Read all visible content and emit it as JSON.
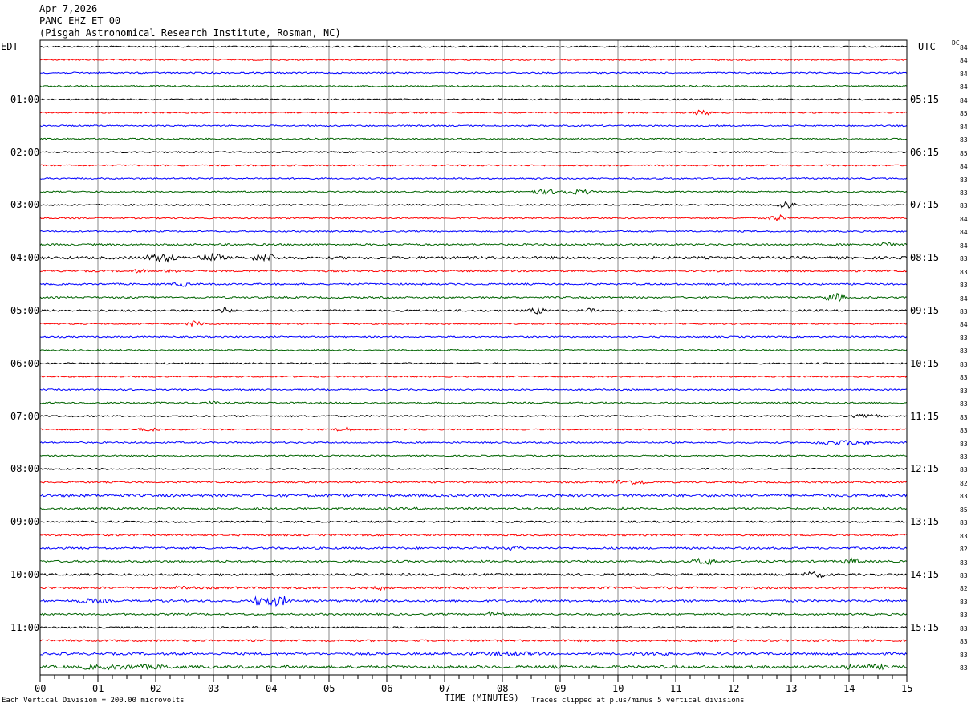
{
  "header": {
    "date": "Apr 7,2026",
    "channel": "PANC EHZ ET 00",
    "station": "(Pisgah Astronomical Research Institute, Rosman, NC)"
  },
  "left_zone": "EDT",
  "right_zone": "UTC",
  "dc_label": "DC",
  "footer": {
    "scale": "Each Vertical Division =  200.00 microvolts",
    "clip": "Traces clipped at plus/minus 5 vertical divisions"
  },
  "colors": [
    "#000000",
    "#ff0000",
    "#0000ff",
    "#006400"
  ],
  "chart_data": {
    "type": "line",
    "title": "PANC EHZ ET 00",
    "xlabel": "TIME (MINUTES)",
    "x_ticks": [
      "00",
      "01",
      "02",
      "03",
      "04",
      "05",
      "06",
      "07",
      "08",
      "09",
      "10",
      "11",
      "12",
      "13",
      "14",
      "15"
    ],
    "xlim": [
      0,
      15
    ],
    "left_hour_labels": [
      "01:00",
      "02:00",
      "03:00",
      "04:00",
      "05:00",
      "06:00",
      "07:00",
      "08:00",
      "09:00",
      "10:00",
      "11:00"
    ],
    "right_hour_labels": [
      "05:15",
      "06:15",
      "07:15",
      "08:15",
      "09:15",
      "10:15",
      "11:15",
      "12:15",
      "13:15",
      "14:15",
      "15:15"
    ],
    "dc_offsets": [
      "84",
      "84",
      "84",
      "84",
      "84",
      "85",
      "84",
      "83",
      "85",
      "84",
      "83",
      "83",
      "83",
      "84",
      "84",
      "84",
      "83",
      "83",
      "83",
      "84",
      "83",
      "84",
      "83",
      "83",
      "83",
      "83",
      "83",
      "83",
      "83",
      "83",
      "83",
      "83",
      "83",
      "82",
      "83",
      "85",
      "83",
      "83",
      "82",
      "83",
      "83",
      "82",
      "83",
      "83",
      "83",
      "83",
      "83",
      "83"
    ],
    "row_amplitude": [
      1,
      1,
      1,
      1,
      1,
      1,
      1,
      1,
      1,
      1,
      1,
      1,
      1,
      1,
      1,
      1.3,
      1.8,
      1.3,
      1.2,
      1.2,
      1.3,
      1,
      1,
      1,
      1,
      1,
      1,
      1.1,
      1.1,
      1,
      1.1,
      1,
      1,
      1.2,
      1.8,
      1.5,
      1.2,
      1.3,
      1.4,
      1.4,
      1.5,
      1.5,
      1.5,
      1.3,
      1.2,
      1.4,
      1.6,
      1.9
    ],
    "events": [
      {
        "row": 5,
        "minute": 11.45,
        "amplitude": 3,
        "duration": 0.2
      },
      {
        "row": 11,
        "minute": 9.0,
        "amplitude": 3,
        "duration": 1.0
      },
      {
        "row": 12,
        "minute": 12.9,
        "amplitude": 5,
        "duration": 0.2
      },
      {
        "row": 13,
        "minute": 12.75,
        "amplitude": 4,
        "duration": 0.15
      },
      {
        "row": 15,
        "minute": 14.7,
        "amplitude": 3,
        "duration": 0.2
      },
      {
        "row": 16,
        "minute": 2.1,
        "amplitude": 5,
        "duration": 0.4
      },
      {
        "row": 16,
        "minute": 2.95,
        "amplitude": 5,
        "duration": 0.3
      },
      {
        "row": 16,
        "minute": 3.9,
        "amplitude": 5,
        "duration": 0.3
      },
      {
        "row": 17,
        "minute": 1.7,
        "amplitude": 2.5,
        "duration": 0.2
      },
      {
        "row": 17,
        "minute": 2.3,
        "amplitude": 2.5,
        "duration": 0.2
      },
      {
        "row": 18,
        "minute": 2.45,
        "amplitude": 3,
        "duration": 0.15
      },
      {
        "row": 19,
        "minute": 13.75,
        "amplitude": 5,
        "duration": 0.2
      },
      {
        "row": 20,
        "minute": 3.2,
        "amplitude": 4,
        "duration": 0.1
      },
      {
        "row": 20,
        "minute": 8.6,
        "amplitude": 4,
        "duration": 0.15
      },
      {
        "row": 20,
        "minute": 9.5,
        "amplitude": 3,
        "duration": 0.1
      },
      {
        "row": 21,
        "minute": 2.7,
        "amplitude": 4,
        "duration": 0.15
      },
      {
        "row": 27,
        "minute": 2.9,
        "amplitude": 2,
        "duration": 0.3
      },
      {
        "row": 29,
        "minute": 5.25,
        "amplitude": 4,
        "duration": 0.1
      },
      {
        "row": 29,
        "minute": 1.9,
        "amplitude": 2,
        "duration": 0.3
      },
      {
        "row": 30,
        "minute": 13.9,
        "amplitude": 3,
        "duration": 0.8
      },
      {
        "row": 28,
        "minute": 14.3,
        "amplitude": 2,
        "duration": 0.4
      },
      {
        "row": 33,
        "minute": 10.2,
        "amplitude": 3,
        "duration": 0.5
      },
      {
        "row": 34,
        "minute": 5.4,
        "amplitude": 2,
        "duration": 0.2
      },
      {
        "row": 38,
        "minute": 8.2,
        "amplitude": 2.5,
        "duration": 0.3
      },
      {
        "row": 39,
        "minute": 11.5,
        "amplitude": 4,
        "duration": 0.3
      },
      {
        "row": 39,
        "minute": 14.05,
        "amplitude": 4,
        "duration": 0.15
      },
      {
        "row": 40,
        "minute": 13.4,
        "amplitude": 3.5,
        "duration": 0.3
      },
      {
        "row": 41,
        "minute": 5.9,
        "amplitude": 3,
        "duration": 0.1
      },
      {
        "row": 41,
        "minute": 2.5,
        "amplitude": 2,
        "duration": 0.3
      },
      {
        "row": 42,
        "minute": 4.0,
        "amplitude": 6,
        "duration": 0.5
      },
      {
        "row": 42,
        "minute": 0.9,
        "amplitude": 3,
        "duration": 0.4
      },
      {
        "row": 43,
        "minute": 7.9,
        "amplitude": 3,
        "duration": 0.2
      },
      {
        "row": 46,
        "minute": 8.0,
        "amplitude": 2.5,
        "duration": 1.2
      },
      {
        "row": 46,
        "minute": 10.6,
        "amplitude": 2.5,
        "duration": 0.6
      },
      {
        "row": 47,
        "minute": 1.5,
        "amplitude": 3,
        "duration": 1.5
      },
      {
        "row": 47,
        "minute": 14.3,
        "amplitude": 3,
        "duration": 0.8
      }
    ]
  }
}
